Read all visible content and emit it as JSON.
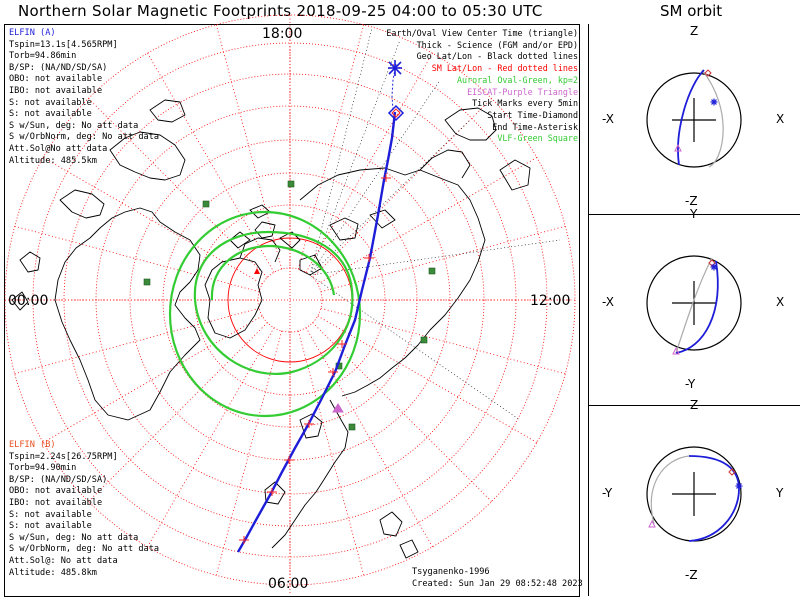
{
  "title": "Northern Solar Magnetic Footprints 2018-09-25 04:00 to 05:30 UTC",
  "orbit_title": "SM orbit",
  "clock_labels": {
    "top": "18:00",
    "left": "00:00",
    "right": "12:00",
    "bottom": "06:00"
  },
  "elfin_a": {
    "name": "ELFIN (A)",
    "color": "#1e1ed8",
    "lines": [
      "Tspin=13.1s[4.565RPM]",
      "Torb=94.86min",
      "B/SP: (NA/ND/SD/SA)",
      "OBO: not available",
      "IBO: not available",
      "S: not available",
      "S: not available",
      "S w/Sun, deg: No att data",
      "S w/OrbNorm, deg: No att data",
      "Att.Sol@No att data",
      "Altitude: 485.5km"
    ]
  },
  "elfin_b": {
    "name": "ELFIN (B)",
    "color": "#e85020",
    "lines": [
      "Tspin=2.24s[26.75RPM]",
      "Torb=94.90min",
      "B/SP: (NA/ND/SD/SA)",
      "OBO: not available",
      "IBO: not available",
      "S: not available",
      "S: not available",
      "S w/Sun, deg: No att data",
      "S w/OrbNorm, deg: No att data",
      "Att.Sol@: No att data",
      "Altitude: 485.8km"
    ]
  },
  "legend": [
    {
      "text": "Earth/Oval View Center Time (triangle)",
      "color": "#000000"
    },
    {
      "text": "Thick - Science (FGM and/or EPD)",
      "color": "#000000"
    },
    {
      "text": "Geo Lat/Lon - Black dotted lines",
      "color": "#000000"
    },
    {
      "text": "SM Lat/Lon - Red dotted lines",
      "color": "#ff0000"
    },
    {
      "text": "Auroral Oval-Green, kp=2",
      "color": "#33cc33"
    },
    {
      "text": "EISCAT-Purple Triangle",
      "color": "#cc66cc"
    },
    {
      "text": "Tick Marks every 5min",
      "color": "#000000"
    },
    {
      "text": "Start Time-Diamond",
      "color": "#000000"
    },
    {
      "text": "End Time-Asterisk",
      "color": "#000000"
    },
    {
      "text": "VLF-Green Square",
      "color": "#33cc33"
    }
  ],
  "credits": {
    "author": "Tsyganenko-1996",
    "created": "Created: Sun Jan 29 08:52:48 2023"
  },
  "orbit_panels": [
    {
      "top": "Z",
      "bottom": "-Z",
      "left": "-X",
      "right": "X"
    },
    {
      "top": "Y",
      "bottom": "-Y",
      "left": "-X",
      "right": "X"
    },
    {
      "top": "Z",
      "bottom": "-Z",
      "left": "-Y",
      "right": "Y"
    }
  ],
  "colors": {
    "track": "#1e1ed8",
    "sm_grid": "#ff0000",
    "oval": "#33cc33",
    "eiscat": "#cc66cc",
    "vlf": "#3a8a3a",
    "coast": "#000000"
  }
}
